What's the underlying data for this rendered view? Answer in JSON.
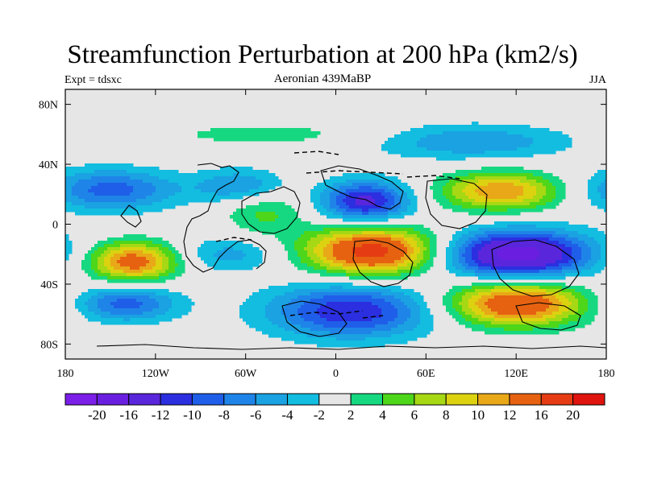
{
  "chart_data": {
    "type": "heatmap",
    "title": "Streamfunction Perturbation at 200 hPa (km2/s)",
    "subtitle_left": "Expt = tdsxc",
    "subtitle_center": "Aeronian 439MaBP",
    "subtitle_right": "JJA",
    "x_ticks": [
      "180",
      "120W",
      "60W",
      "0",
      "60E",
      "120E",
      "180"
    ],
    "x_values": [
      -180,
      -120,
      -60,
      0,
      60,
      120,
      180
    ],
    "y_ticks": [
      "80N",
      "40N",
      "0",
      "40S",
      "80S"
    ],
    "y_values": [
      80,
      40,
      0,
      -40,
      -80
    ],
    "xlim": [
      -180,
      180
    ],
    "ylim": [
      -90,
      90
    ],
    "levels": [
      -20,
      -16,
      -12,
      -10,
      -8,
      -6,
      -4,
      -2,
      2,
      4,
      6,
      8,
      10,
      12,
      16,
      20
    ],
    "level_labels": [
      "-20",
      "-16",
      "-12",
      "-10",
      "-8",
      "-6",
      "-4",
      "-2",
      "2",
      "4",
      "6",
      "8",
      "10",
      "12",
      "16",
      "20"
    ],
    "colors": [
      "#7b1ee8",
      "#6a1fe0",
      "#5a26dc",
      "#2b2fe0",
      "#1f5ee8",
      "#1f84e8",
      "#1aa2e2",
      "#12bde0",
      "#e6e6e6",
      "#16d880",
      "#4ed61a",
      "#a6d814",
      "#dcd210",
      "#e8a818",
      "#e66210",
      "#e63c14",
      "#e0140e"
    ],
    "field_centers": [
      {
        "lon": -150,
        "lat": 23,
        "amp": -9,
        "rlon": 45,
        "rlat": 14
      },
      {
        "lon": -135,
        "lat": -25,
        "amp": 14,
        "rlon": 30,
        "rlat": 13
      },
      {
        "lon": -140,
        "lat": -53,
        "amp": -9,
        "rlon": 35,
        "rlat": 12
      },
      {
        "lon": -62,
        "lat": 25,
        "amp": -7,
        "rlon": 30,
        "rlat": 12
      },
      {
        "lon": -70,
        "lat": -20,
        "amp": -5,
        "rlon": 35,
        "rlat": 12
      },
      {
        "lon": -45,
        "lat": 60,
        "amp": 3,
        "rlon": 75,
        "rlat": 8
      },
      {
        "lon": -48,
        "lat": 10,
        "amp": 5,
        "rlon": 28,
        "rlat": 17
      },
      {
        "lon": 20,
        "lat": 15,
        "amp": -13,
        "rlon": 30,
        "rlat": 14
      },
      {
        "lon": 25,
        "lat": -18,
        "amp": 18,
        "rlon": 45,
        "rlat": 16
      },
      {
        "lon": 10,
        "lat": -58,
        "amp": -12,
        "rlon": 55,
        "rlat": 18
      },
      {
        "lon": 110,
        "lat": 22,
        "amp": 12,
        "rlon": 40,
        "rlat": 13
      },
      {
        "lon": 120,
        "lat": -20,
        "amp": -18,
        "rlon": 50,
        "rlat": 16
      },
      {
        "lon": 120,
        "lat": -53,
        "amp": 16,
        "rlon": 45,
        "rlat": 15
      },
      {
        "lon": 90,
        "lat": 55,
        "amp": -6,
        "rlon": 65,
        "rlat": 12
      }
    ]
  }
}
